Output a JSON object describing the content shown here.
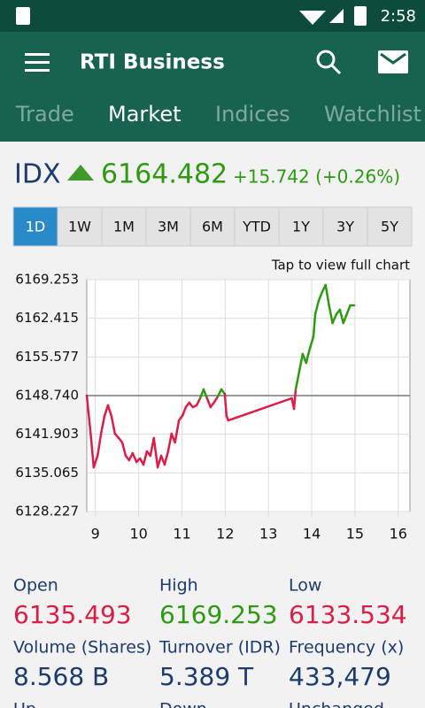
{
  "status_bar": {
    "time": "2:58"
  },
  "app_bar": {
    "title": "RTI Business"
  },
  "tabs": [
    "Trade",
    "Market",
    "Indices",
    "Watchlist"
  ],
  "quote": {
    "symbol": "IDX",
    "price": "6164.482",
    "change": "+15.742 (+0.26%)"
  },
  "ranges": [
    "1D",
    "1W",
    "1M",
    "3M",
    "6M",
    "YTD",
    "1Y",
    "3Y",
    "5Y"
  ],
  "chart_data": {
    "type": "line",
    "annotation": "Tap to view full chart",
    "x": [
      8.8,
      8.9,
      8.96,
      9.05,
      9.13,
      9.21,
      9.29,
      9.37,
      9.45,
      9.54,
      9.62,
      9.7,
      9.78,
      9.86,
      9.95,
      10.03,
      10.11,
      10.19,
      10.27,
      10.35,
      10.44,
      10.52,
      10.6,
      10.68,
      10.76,
      10.84,
      10.93,
      11.01,
      11.09,
      11.17,
      11.25,
      11.34,
      11.42,
      11.5,
      11.58,
      11.66,
      11.74,
      11.83,
      11.91,
      11.99,
      12.03,
      12.07,
      13.54,
      13.59,
      13.63,
      13.71,
      13.79,
      13.87,
      13.95,
      14.04,
      14.08,
      14.16,
      14.24,
      14.32,
      14.4,
      14.48,
      14.57,
      14.65,
      14.73,
      14.81,
      14.89,
      14.98
    ],
    "series": [
      {
        "values": [
          6148.74,
          6141.22,
          6136.05,
          6138.09,
          6142.0,
          6145.14,
          6147.02,
          6145.14,
          6142.0,
          6141.22,
          6140.44,
          6138.09,
          6137.31,
          6138.56,
          6137.0,
          6137.62,
          6136.53,
          6138.87,
          6138.09,
          6141.22,
          6136.05,
          6138.09,
          6136.53,
          6138.87,
          6142.0,
          6140.44,
          6144.35,
          6145.14,
          6146.7,
          6147.49,
          6146.7,
          6147.02,
          6148.27,
          6149.83,
          6148.27,
          6146.7,
          6147.49,
          6148.58,
          6149.83,
          6149.05,
          6145.14,
          6144.35,
          6148.27,
          6146.39,
          6149.83,
          6152.97,
          6156.1,
          6154.53,
          6156.88,
          6159.23,
          6163.14,
          6165.49,
          6167.06,
          6168.31,
          6164.71,
          6161.58,
          6163.14,
          6163.93,
          6161.58,
          6163.14,
          6164.71,
          6164.71
        ]
      }
    ],
    "baseline": 6148.74,
    "up_color": "#2e9a12",
    "down_color": "#dc1e47",
    "xlim": [
      8.8,
      16.27
    ],
    "xticks": [
      9,
      10,
      11,
      12,
      13,
      14,
      15,
      16
    ],
    "ylim": [
      6128.227,
      6169.253
    ],
    "yticks": [
      6128.227,
      6135.065,
      6141.903,
      {
        "value": 6148.74,
        "label": "6148.740"
      },
      6155.577,
      6162.415,
      6169.253
    ],
    "grid": true
  },
  "stats": [
    {
      "label": "Open",
      "value": "6135.493",
      "color": "#dc1e47"
    },
    {
      "label": "High",
      "value": "6169.253",
      "color": "#2e9a12"
    },
    {
      "label": "Low",
      "value": "6133.534",
      "color": "#dc1e47"
    },
    {
      "label": "Volume (Shares)",
      "value": "8.568 B",
      "color": "#1c3b6e"
    },
    {
      "label": "Turnover (IDR)",
      "value": "5.389 T",
      "color": "#1c3b6e"
    },
    {
      "label": "Frequency (x)",
      "value": "433,479",
      "color": "#1c3b6e"
    },
    {
      "label": "Up"
    },
    {
      "label": "Down"
    },
    {
      "label": "Unchanged"
    }
  ]
}
